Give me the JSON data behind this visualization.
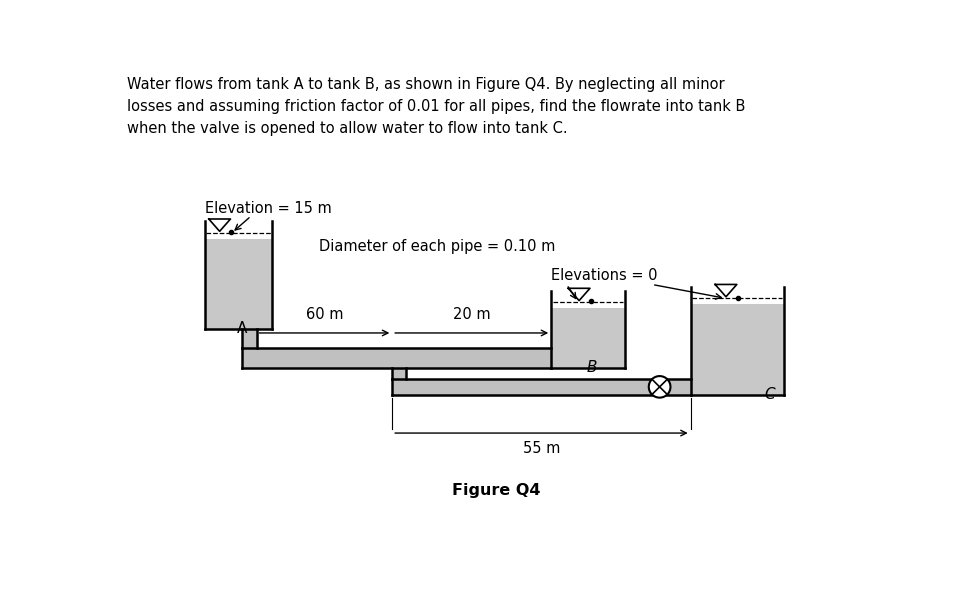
{
  "title_text": "Water flows from tank A to tank B, as shown in Figure Q4. By neglecting all minor\nlosses and assuming friction factor of 0.01 for all pipes, find the flowrate into tank B\nwhen the valve is opened to allow water to flow into tank C.",
  "figure_label": "Figure Q4",
  "elevation_label": "Elevation = 15 m",
  "diameter_label": "Diameter of each pipe = 0.10 m",
  "elevations_label": "Elevations = 0",
  "dim_60m": "60 m",
  "dim_20m": "20 m",
  "dim_55m": "55 m",
  "tank_A_label": "A",
  "tank_B_label": "B",
  "tank_C_label": "C",
  "bg_color": "#ffffff",
  "pipe_color": "#000000",
  "fill_dark": "#a0a0a0",
  "fill_light": "#c8c8c8",
  "lw_wall": 1.8,
  "lw_dim": 1.0,
  "lw_tri": 1.2
}
